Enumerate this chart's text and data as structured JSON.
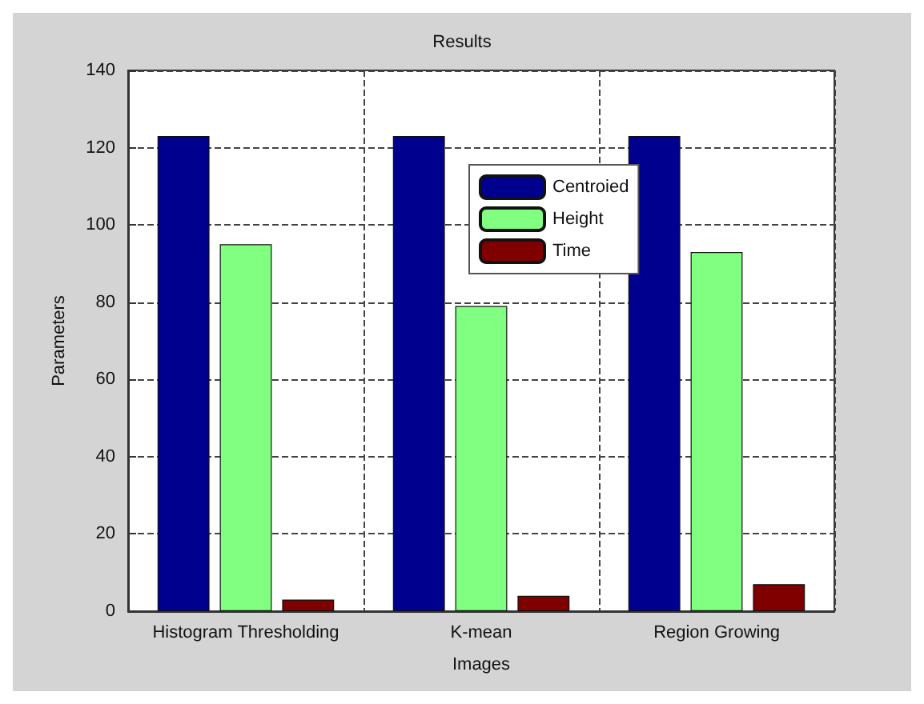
{
  "chart_data": {
    "type": "bar",
    "title": "Results",
    "xlabel": "Images",
    "ylabel": "Parameters",
    "categories": [
      "Histogram Thresholding",
      "K-mean",
      "Region Growing"
    ],
    "series": [
      {
        "name": "Centroied",
        "color": "#00008f",
        "values": [
          123,
          123,
          123
        ]
      },
      {
        "name": "Height",
        "color": "#80ff80",
        "values": [
          95,
          79,
          93
        ]
      },
      {
        "name": "Time",
        "color": "#800000",
        "values": [
          3,
          4,
          7
        ]
      }
    ],
    "ylim": [
      0,
      140
    ],
    "yticks": [
      0,
      20,
      40,
      60,
      80,
      100,
      120,
      140
    ],
    "grid": true,
    "legend": "top"
  }
}
